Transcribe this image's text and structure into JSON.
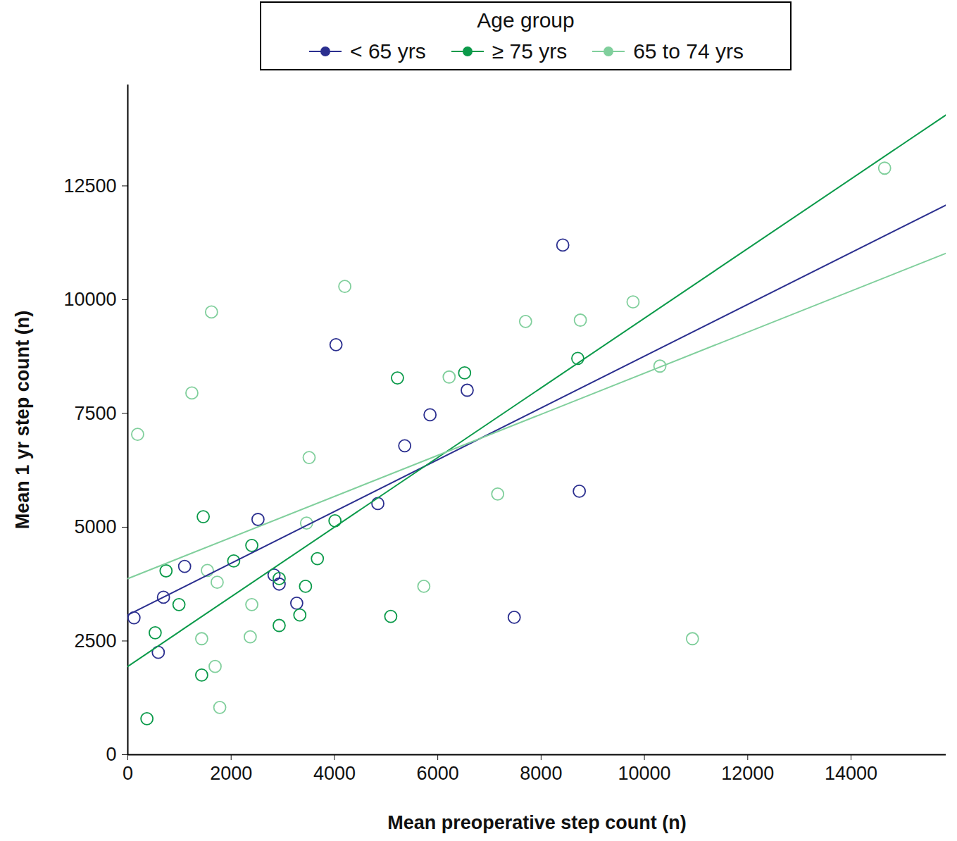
{
  "chart_data": {
    "type": "scatter",
    "x_label": "Mean preoperative step count (n)",
    "y_label": "Mean 1 yr step count (n)",
    "xlim": [
      0,
      15840
    ],
    "ylim": [
      0,
      14720
    ],
    "xticks": [
      0,
      2000,
      4000,
      6000,
      8000,
      10000,
      12000,
      14000
    ],
    "yticks": [
      0,
      2500,
      5000,
      7500,
      10000,
      12500
    ],
    "grid": false,
    "legend": "top",
    "legend_title": "Age group",
    "series": [
      {
        "name": "< 65 yrs",
        "color": "#2b2f8f",
        "marker": "open_circle",
        "x": [
          120,
          590,
          690,
          1100,
          2520,
          2830,
          2930,
          3270,
          4030,
          4840,
          5360,
          5850,
          6570,
          7480,
          8420,
          8740
        ],
        "values": [
          3010,
          2250,
          3460,
          4140,
          5170,
          3950,
          3750,
          3330,
          9010,
          5520,
          6790,
          7470,
          8010,
          3020,
          11200,
          5790
        ],
        "fit": {
          "x": [
            0,
            15840
          ],
          "values": [
            3070,
            12080
          ]
        }
      },
      {
        "name": "≥ 75 yrs",
        "color": "#0b9a4a",
        "marker": "open_circle",
        "x": [
          370,
          530,
          740,
          990,
          1430,
          1460,
          2050,
          2400,
          2930,
          2930,
          3330,
          3440,
          3670,
          4010,
          5090,
          5220,
          6520,
          8710
        ],
        "values": [
          790,
          2680,
          4040,
          3300,
          1750,
          5230,
          4260,
          4600,
          2840,
          3870,
          3070,
          3700,
          4310,
          5140,
          3040,
          8280,
          8390,
          8710
        ],
        "fit": {
          "x": [
            0,
            15840
          ],
          "values": [
            1940,
            14060
          ]
        }
      },
      {
        "name": "65 to 74 yrs",
        "color": "#80cf9c",
        "marker": "open_circle",
        "x": [
          190,
          1240,
          1430,
          1540,
          1620,
          1690,
          1730,
          1780,
          2370,
          2400,
          3460,
          3510,
          4200,
          5730,
          6220,
          7160,
          7700,
          8760,
          9780,
          10300,
          10930,
          14650
        ],
        "values": [
          7040,
          7950,
          2550,
          4050,
          9730,
          1940,
          3790,
          1040,
          2590,
          3300,
          5090,
          6530,
          10290,
          3700,
          8300,
          5730,
          9520,
          9550,
          9950,
          8540,
          2550,
          12890
        ],
        "fit": {
          "x": [
            0,
            15840
          ],
          "values": [
            3870,
            11020
          ]
        }
      }
    ]
  }
}
